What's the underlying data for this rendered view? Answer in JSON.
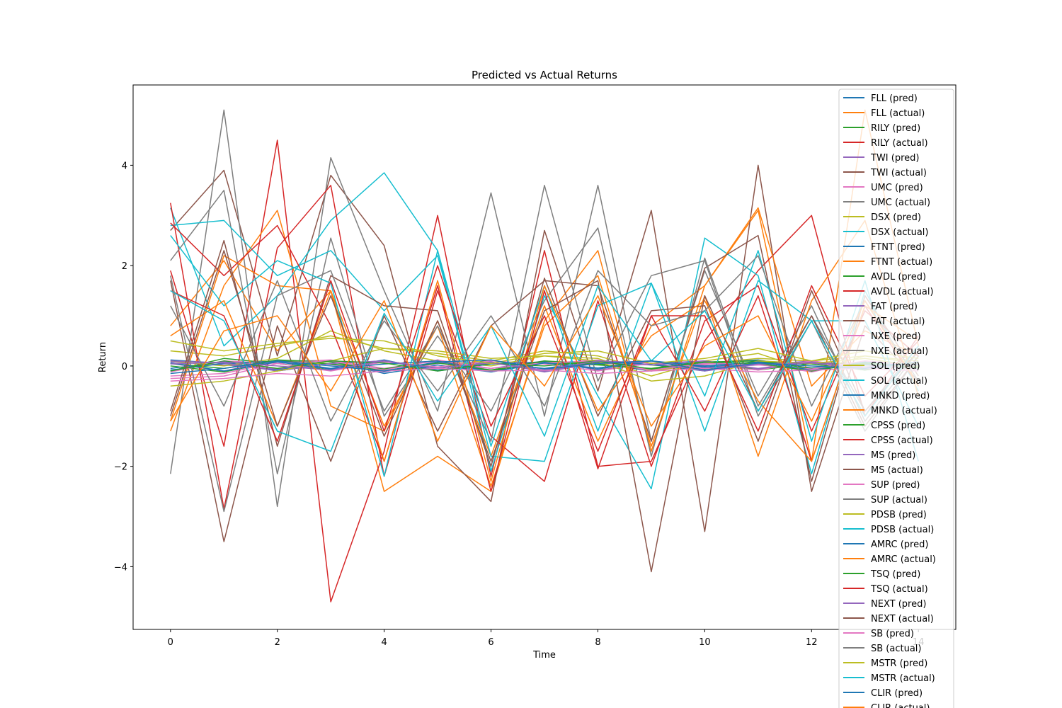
{
  "chart_data": {
    "type": "line",
    "title": "Predicted vs Actual Returns",
    "xlabel": "Time",
    "ylabel": "Return",
    "xlim": [
      -0.7,
      14.7
    ],
    "ylim": [
      -5.25,
      5.6
    ],
    "xticks": [
      0,
      2,
      4,
      6,
      8,
      10,
      12,
      14
    ],
    "xtick_labels": [
      "0",
      "2",
      "4",
      "6",
      "8",
      "10",
      "12",
      "14"
    ],
    "yticks": [
      -4,
      -2,
      0,
      2,
      4
    ],
    "ytick_labels": [
      "−4",
      "−2",
      "0",
      "2",
      "4"
    ],
    "grid": false,
    "legend_placement": "right",
    "x": [
      0,
      1,
      2,
      3,
      4,
      5,
      6,
      7,
      8,
      9,
      10,
      11,
      12,
      13,
      14
    ],
    "series": [
      {
        "name": "FLL (pred)",
        "color": "#1f77b4",
        "values": [
          0.12,
          0.05,
          -0.08,
          0.1,
          -0.15,
          0.02,
          -0.12,
          0.08,
          0.05,
          -0.1,
          0.06,
          0.12,
          -0.05,
          0.03,
          0.0
        ]
      },
      {
        "name": "FLL (actual)",
        "color": "#ff7f0e",
        "values": [
          0.8,
          2.1,
          0.3,
          1.5,
          -2.5,
          -1.8,
          -2.5,
          0.9,
          2.3,
          -1.7,
          1.6,
          3.1,
          -1.9,
          5.1,
          0.4
        ]
      },
      {
        "name": "RILY (pred)",
        "color": "#2ca02c",
        "values": [
          -0.1,
          0.15,
          0.05,
          -0.08,
          0.1,
          -0.05,
          0.12,
          -0.1,
          0.08,
          0.02,
          -0.06,
          0.1,
          0.04,
          -0.08,
          0.05
        ]
      },
      {
        "name": "RILY (actual)",
        "color": "#d62728",
        "values": [
          1.9,
          -1.6,
          4.5,
          -4.7,
          -1.7,
          3.0,
          -2.2,
          2.3,
          -2.0,
          -1.9,
          0.5,
          1.9,
          3.0,
          -1.0,
          0.6
        ]
      },
      {
        "name": "TWI (pred)",
        "color": "#9467bd",
        "values": [
          0.05,
          -0.1,
          0.12,
          0.03,
          -0.12,
          0.08,
          -0.05,
          0.1,
          -0.08,
          0.05,
          0.1,
          -0.05,
          0.08,
          0.02,
          -0.06
        ]
      },
      {
        "name": "TWI (actual)",
        "color": "#8c564b",
        "values": [
          2.7,
          3.9,
          0.2,
          3.8,
          2.4,
          -1.6,
          -2.7,
          2.7,
          -0.5,
          3.1,
          -3.3,
          4.0,
          -2.5,
          0.8,
          -0.3
        ]
      },
      {
        "name": "UMC (pred)",
        "color": "#e377c2",
        "values": [
          -0.2,
          -0.15,
          0.08,
          0.12,
          -0.05,
          0.1,
          -0.08,
          0.05,
          0.12,
          -0.1,
          0.04,
          0.06,
          -0.12,
          0.1,
          0.02
        ]
      },
      {
        "name": "UMC (actual)",
        "color": "#7f7f7f",
        "values": [
          -2.15,
          5.1,
          -2.8,
          4.15,
          1.5,
          -0.9,
          3.45,
          -1.0,
          3.6,
          -1.5,
          1.9,
          -0.6,
          1.2,
          -1.1,
          0.3
        ]
      },
      {
        "name": "DSX (pred)",
        "color": "#bcbd22",
        "values": [
          0.3,
          0.2,
          0.4,
          0.6,
          0.35,
          0.25,
          0.1,
          0.3,
          0.2,
          -0.1,
          0.05,
          0.15,
          0.1,
          0.2,
          0.1
        ]
      },
      {
        "name": "DSX (actual)",
        "color": "#17becf",
        "values": [
          3.15,
          0.4,
          1.4,
          2.9,
          3.85,
          2.3,
          -2.1,
          1.4,
          -0.6,
          -2.45,
          2.55,
          1.8,
          -2.15,
          1.5,
          -0.5
        ]
      },
      {
        "name": "FTNT (pred)",
        "color": "#1f77b4",
        "values": [
          -0.05,
          0.08,
          -0.1,
          0.05,
          0.1,
          -0.08,
          0.06,
          -0.05,
          0.1,
          0.03,
          -0.1,
          0.08,
          -0.04,
          0.05,
          0.0
        ]
      },
      {
        "name": "FTNT (actual)",
        "color": "#ff7f0e",
        "values": [
          -1.3,
          1.6,
          3.1,
          -0.8,
          -1.3,
          0.9,
          -1.8,
          1.2,
          -1.5,
          0.8,
          1.6,
          3.15,
          -0.4,
          0.7,
          0.2
        ]
      },
      {
        "name": "AVDL (pred)",
        "color": "#2ca02c",
        "values": [
          0.0,
          -0.12,
          0.1,
          0.04,
          -0.06,
          0.12,
          -0.1,
          0.08,
          0.02,
          -0.05,
          0.1,
          -0.08,
          0.05,
          0.06,
          -0.02
        ]
      },
      {
        "name": "AVDL (actual)",
        "color": "#d62728",
        "values": [
          3.25,
          -2.85,
          2.35,
          3.6,
          -2.2,
          1.5,
          -1.4,
          -2.3,
          1.3,
          -2.0,
          0.9,
          1.6,
          -1.3,
          1.1,
          0.2
        ]
      },
      {
        "name": "FAT (pred)",
        "color": "#9467bd",
        "values": [
          0.08,
          0.02,
          -0.06,
          0.1,
          -0.1,
          0.05,
          0.08,
          -0.12,
          0.06,
          0.1,
          -0.04,
          0.02,
          0.1,
          -0.06,
          0.04
        ]
      },
      {
        "name": "FAT (actual)",
        "color": "#8c564b",
        "values": [
          1.7,
          -3.5,
          0.8,
          -1.9,
          1.0,
          -1.3,
          0.8,
          1.7,
          1.6,
          -1.5,
          1.95,
          2.6,
          -2.3,
          1.4,
          -0.2
        ]
      },
      {
        "name": "NXE (pred)",
        "color": "#e377c2",
        "values": [
          -0.12,
          0.1,
          0.05,
          -0.1,
          0.08,
          -0.02,
          0.1,
          0.04,
          -0.1,
          0.06,
          0.02,
          -0.08,
          0.1,
          -0.04,
          0.05
        ]
      },
      {
        "name": "NXE (actual)",
        "color": "#7f7f7f",
        "values": [
          2.1,
          3.5,
          -2.15,
          2.55,
          -1.0,
          0.6,
          -0.9,
          1.3,
          2.75,
          -1.8,
          2.15,
          -0.8,
          1.0,
          -0.9,
          0.4
        ]
      },
      {
        "name": "SOL (pred)",
        "color": "#bcbd22",
        "values": [
          0.1,
          0.0,
          0.15,
          0.7,
          0.3,
          0.1,
          0.0,
          0.2,
          0.15,
          -0.2,
          0.1,
          0.25,
          -0.1,
          0.2,
          0.05
        ]
      },
      {
        "name": "SOL (actual)",
        "color": "#17becf",
        "values": [
          2.8,
          2.9,
          1.8,
          2.3,
          1.1,
          2.2,
          -1.8,
          -1.9,
          1.2,
          1.65,
          -1.3,
          1.7,
          0.9,
          0.9,
          -1.2
        ]
      },
      {
        "name": "MNKD (pred)",
        "color": "#1f77b4",
        "values": [
          -0.08,
          0.05,
          0.1,
          -0.05,
          0.12,
          -0.1,
          0.04,
          0.08,
          -0.06,
          0.1,
          -0.02,
          0.05,
          -0.1,
          0.08,
          0.0
        ]
      },
      {
        "name": "MNKD (actual)",
        "color": "#ff7f0e",
        "values": [
          -1.1,
          2.2,
          1.6,
          1.5,
          -1.2,
          0.8,
          -2.4,
          0.8,
          1.8,
          -1.6,
          1.4,
          -1.8,
          1.3,
          2.9,
          -0.6
        ]
      },
      {
        "name": "CPSS (pred)",
        "color": "#2ca02c",
        "values": [
          0.05,
          -0.05,
          0.12,
          0.08,
          -0.1,
          0.06,
          -0.08,
          0.1,
          0.04,
          -0.06,
          0.08,
          0.1,
          -0.05,
          0.02,
          0.06
        ]
      },
      {
        "name": "CPSS (actual)",
        "color": "#d62728",
        "values": [
          2.85,
          1.8,
          2.8,
          0.8,
          -1.9,
          1.6,
          -2.5,
          1.5,
          -2.05,
          1.0,
          -0.9,
          1.4,
          -1.9,
          1.2,
          -0.4
        ]
      },
      {
        "name": "MS (pred)",
        "color": "#9467bd",
        "values": [
          0.1,
          0.06,
          -0.1,
          0.05,
          0.1,
          -0.05,
          0.08,
          -0.1,
          0.06,
          0.02,
          0.1,
          -0.06,
          0.08,
          -0.02,
          0.04
        ]
      },
      {
        "name": "MS (actual)",
        "color": "#8c564b",
        "values": [
          -0.9,
          2.5,
          -1.6,
          1.8,
          1.2,
          1.1,
          -2.0,
          1.75,
          -1.0,
          1.1,
          1.2,
          -1.5,
          1.5,
          -0.9,
          0.3
        ]
      },
      {
        "name": "SUP (pred)",
        "color": "#e377c2",
        "values": [
          -0.25,
          -0.2,
          0.05,
          0.1,
          -0.08,
          0.12,
          -0.05,
          0.06,
          0.1,
          -0.08,
          0.05,
          0.02,
          -0.06,
          0.1,
          0.0
        ]
      },
      {
        "name": "SUP (actual)",
        "color": "#7f7f7f",
        "values": [
          1.8,
          -2.9,
          1.4,
          1.9,
          -0.9,
          0.8,
          -1.5,
          3.6,
          -0.3,
          1.8,
          2.1,
          -1.0,
          0.9,
          -1.3,
          0.2
        ]
      },
      {
        "name": "PDSB (pred)",
        "color": "#bcbd22",
        "values": [
          -0.4,
          -0.3,
          -0.1,
          0.1,
          0.35,
          0.3,
          0.15,
          0.2,
          0.1,
          -0.3,
          -0.2,
          0.1,
          0.05,
          0.15,
          0.0
        ]
      },
      {
        "name": "PDSB (actual)",
        "color": "#17becf",
        "values": [
          2.6,
          1.2,
          2.1,
          1.65,
          -2.2,
          2.3,
          -1.6,
          1.6,
          -1.3,
          1.65,
          -0.6,
          2.3,
          -1.5,
          1.7,
          -1.9
        ]
      },
      {
        "name": "AMRC (pred)",
        "color": "#1f77b4",
        "values": [
          0.06,
          -0.1,
          0.08,
          -0.06,
          0.04,
          0.1,
          -0.12,
          0.06,
          -0.04,
          0.1,
          0.0,
          0.08,
          -0.08,
          0.04,
          0.02
        ]
      },
      {
        "name": "AMRC (actual)",
        "color": "#ff7f0e",
        "values": [
          0.6,
          1.3,
          -1.2,
          1.5,
          -1.9,
          1.7,
          -2.3,
          1.6,
          -0.9,
          0.6,
          1.3,
          -0.7,
          -1.9,
          1.2,
          0.5
        ]
      },
      {
        "name": "TSQ (pred)",
        "color": "#2ca02c",
        "values": [
          -0.1,
          0.1,
          -0.05,
          0.1,
          0.06,
          -0.1,
          0.05,
          0.0,
          0.1,
          -0.06,
          0.08,
          0.05,
          -0.1,
          0.06,
          -0.04
        ]
      },
      {
        "name": "TSQ (actual)",
        "color": "#d62728",
        "values": [
          1.5,
          1.0,
          -1.5,
          1.7,
          -1.3,
          2.0,
          -1.2,
          1.0,
          -1.7,
          1.0,
          1.0,
          -1.3,
          1.6,
          -0.6,
          0.5
        ]
      },
      {
        "name": "NEXT (pred)",
        "color": "#9467bd",
        "values": [
          0.04,
          0.08,
          0.0,
          -0.08,
          0.1,
          -0.04,
          0.06,
          -0.08,
          0.1,
          0.06,
          -0.1,
          0.04,
          0.06,
          -0.05,
          0.08
        ]
      },
      {
        "name": "NEXT (actual)",
        "color": "#8c564b",
        "values": [
          -1.0,
          2.3,
          -1.2,
          1.4,
          -1.4,
          0.9,
          -1.9,
          1.1,
          1.7,
          -4.1,
          1.4,
          -0.9,
          1.0,
          -1.2,
          0.2
        ]
      },
      {
        "name": "SB (pred)",
        "color": "#e377c2",
        "values": [
          -0.3,
          -0.25,
          -0.15,
          -0.2,
          -0.1,
          -0.05,
          -0.1,
          -0.08,
          -0.15,
          -0.1,
          -0.05,
          -0.12,
          -0.08,
          -0.05,
          -0.1
        ]
      },
      {
        "name": "SB (actual)",
        "color": "#7f7f7f",
        "values": [
          1.2,
          -0.8,
          1.7,
          -1.1,
          0.9,
          -0.5,
          1.0,
          -0.8,
          1.9,
          0.8,
          1.1,
          2.2,
          -0.8,
          1.3,
          -0.3
        ]
      },
      {
        "name": "MSTR (pred)",
        "color": "#bcbd22",
        "values": [
          0.5,
          0.3,
          0.45,
          0.55,
          0.5,
          0.2,
          0.05,
          0.25,
          0.3,
          0.05,
          0.15,
          0.35,
          0.1,
          0.3,
          0.15
        ]
      },
      {
        "name": "MSTR (actual)",
        "color": "#17becf",
        "values": [
          1.5,
          0.9,
          -1.3,
          -1.7,
          1.05,
          -0.7,
          0.8,
          -1.4,
          1.6,
          0.1,
          1.1,
          -0.9,
          0.9,
          -1.0,
          0.4
        ]
      },
      {
        "name": "CLIR (pred)",
        "color": "#1f77b4",
        "values": [
          -0.15,
          -0.05,
          0.1,
          0.0,
          -0.1,
          0.08,
          0.12,
          -0.06,
          0.05,
          0.1,
          -0.08,
          0.06,
          0.0,
          -0.05,
          0.08
        ]
      },
      {
        "name": "CLIR (actual)",
        "color": "#ff7f0e",
        "values": [
          -1.1,
          0.7,
          1.0,
          -0.5,
          1.3,
          -1.5,
          0.8,
          -0.4,
          1.4,
          -1.2,
          0.4,
          1.0,
          -1.1,
          1.3,
          -0.4
        ]
      }
    ]
  }
}
